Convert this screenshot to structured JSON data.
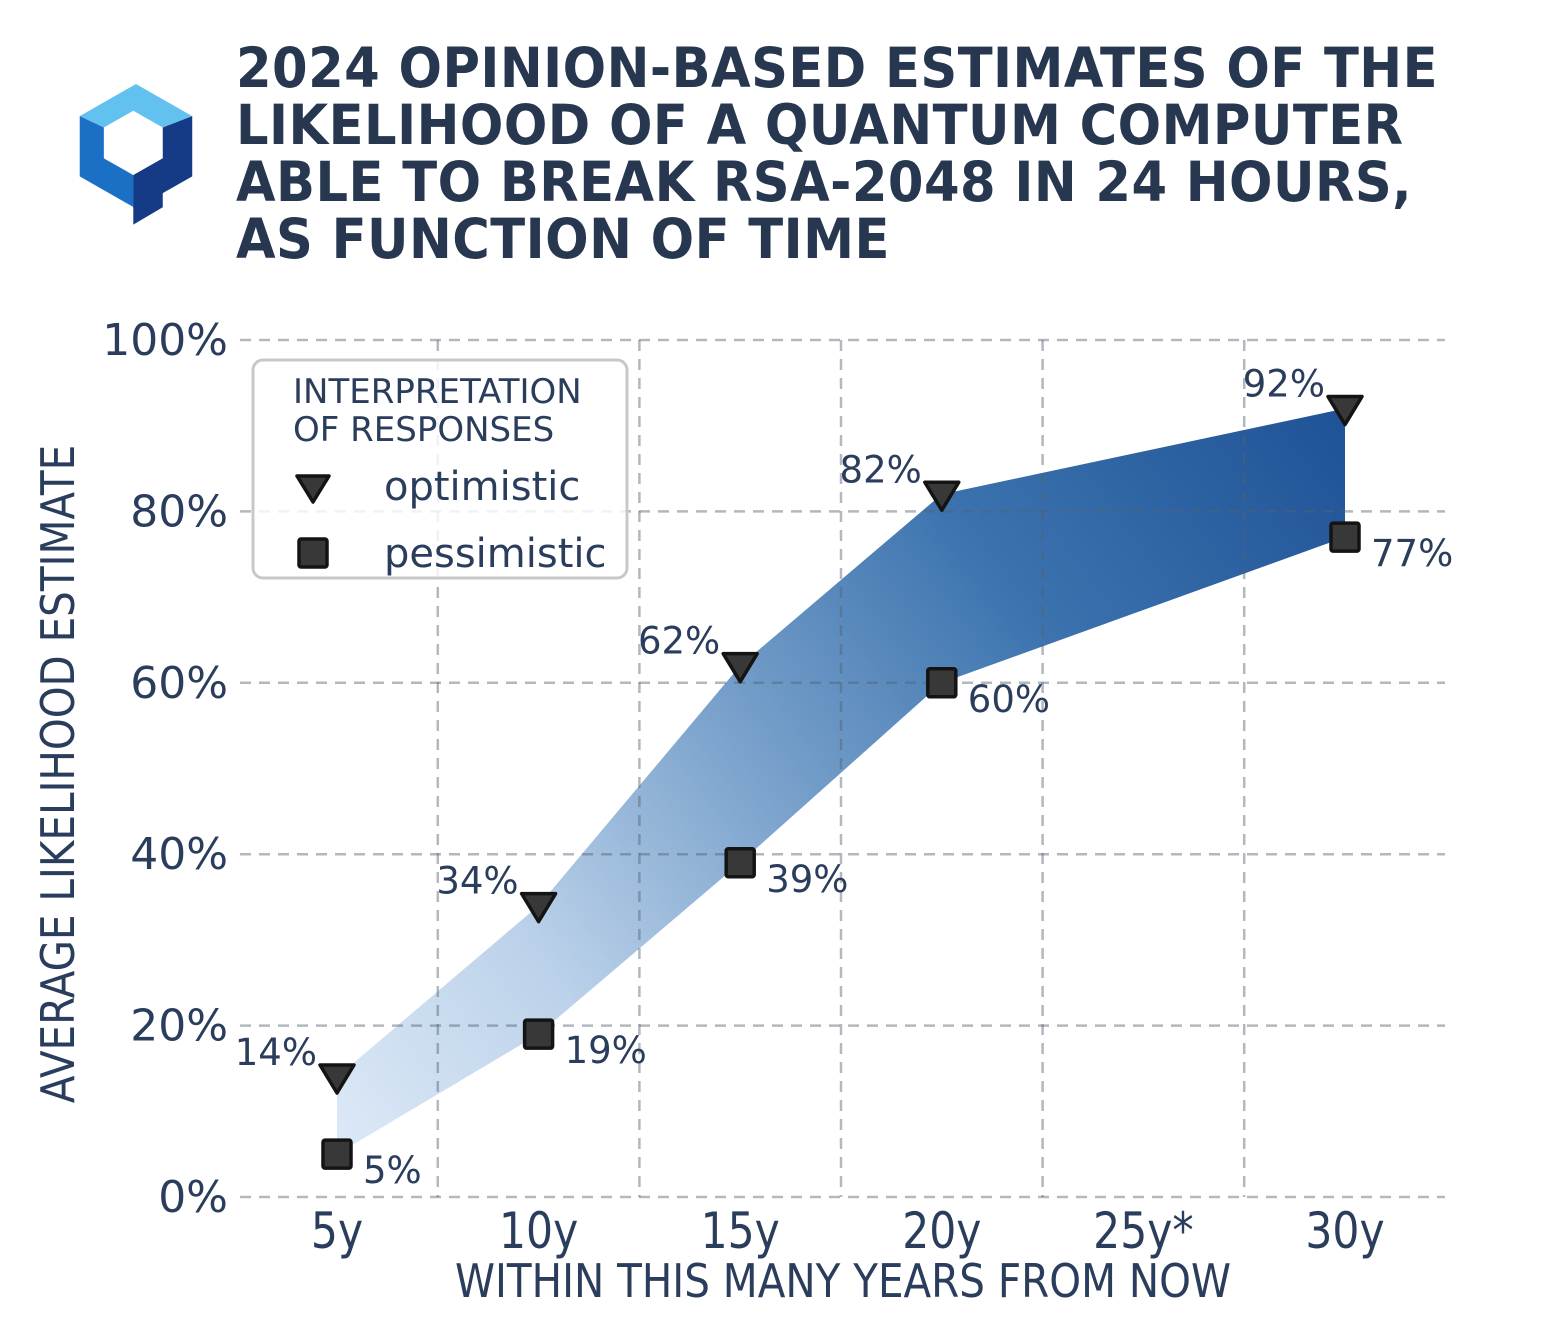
{
  "logo": {
    "name": "quantum-cube-logo",
    "colors": {
      "top_face": "#63c1ef",
      "left_face": "#1b6fc5",
      "right_face": "#153a86"
    }
  },
  "title_lines": [
    "2024 OPINION-BASED ESTIMATES OF THE",
    "LIKELIHOOD OF A QUANTUM COMPUTER",
    "ABLE TO BREAK RSA-2048 IN 24 HOURS,",
    "AS FUNCTION OF TIME"
  ],
  "colors": {
    "title_text": "#26374f",
    "chart_text": "#2b3d5c",
    "marker_fill": "#383838",
    "marker_edge": "#141414",
    "gridline": "rgba(85,97,110,0.45)",
    "legend_border": "#c8c8c8"
  },
  "chart_data": {
    "type": "area",
    "categories": [
      "5y",
      "10y",
      "15y",
      "20y",
      "25y*",
      "30y"
    ],
    "series": [
      {
        "name": "optimistic",
        "marker": "triangle-down-icon",
        "values": [
          14,
          34,
          62,
          82,
          null,
          92
        ],
        "labels": [
          "14%",
          "34%",
          "62%",
          "82%",
          null,
          "92%"
        ]
      },
      {
        "name": "pessimistic",
        "marker": "square-icon",
        "values": [
          5,
          19,
          39,
          60,
          null,
          77
        ],
        "labels": [
          "5%",
          "19%",
          "39%",
          "60%",
          null,
          "77%"
        ]
      }
    ],
    "xlabel": "WITHIN THIS MANY YEARS FROM NOW",
    "ylabel": "AVERAGE LIKELIHOOD ESTIMATE",
    "ylim": [
      0,
      100
    ],
    "ytick_values": [
      0,
      20,
      40,
      60,
      80,
      100
    ],
    "ytick_labels": [
      "0%",
      "20%",
      "40%",
      "60%",
      "80%",
      "100%"
    ],
    "grid": "dashed",
    "legend": {
      "title": "INTERPRETATION OF RESPONSES",
      "title_lines": [
        "INTERPRETATION",
        "OF RESPONSES"
      ],
      "entries": [
        "optimistic",
        "pessimistic"
      ],
      "position": "upper left"
    },
    "band_gradient": [
      [
        0.0,
        "#dde9f7"
      ],
      [
        0.22,
        "#bcd2ea"
      ],
      [
        0.45,
        "#7aa2cc"
      ],
      [
        0.7,
        "#3c73ae"
      ],
      [
        1.0,
        "#1f5296"
      ]
    ]
  }
}
